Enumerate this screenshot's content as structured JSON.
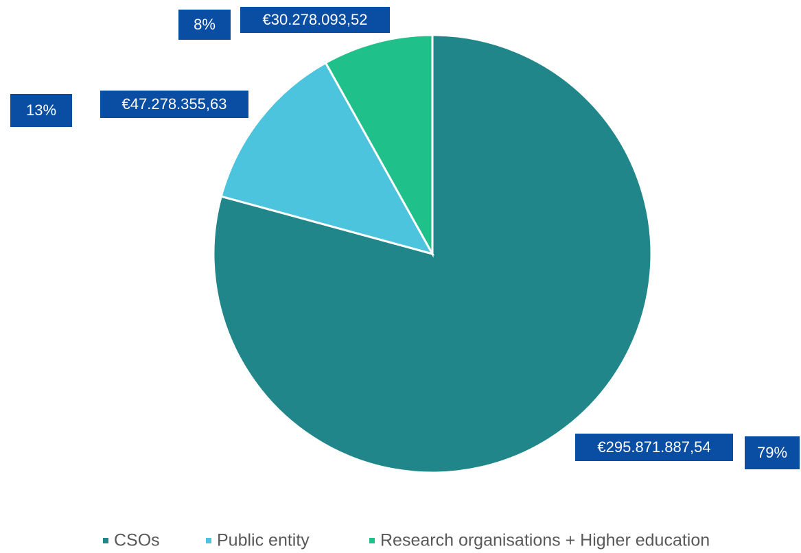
{
  "chart_data": {
    "type": "pie",
    "categories": [
      "CSOs",
      "Public entity",
      "Research organisations + Higher education"
    ],
    "values": [
      295871887.54,
      47278355.63,
      30278093.52
    ],
    "value_labels": [
      "€295.871.887,54",
      "€47.278.355,63",
      "€30.278.093,52"
    ],
    "percent_labels": [
      "79%",
      "13%",
      "8%"
    ],
    "colors": [
      "#21868a",
      "#4dc4de",
      "#20c08a"
    ],
    "legend": "bottom"
  }
}
